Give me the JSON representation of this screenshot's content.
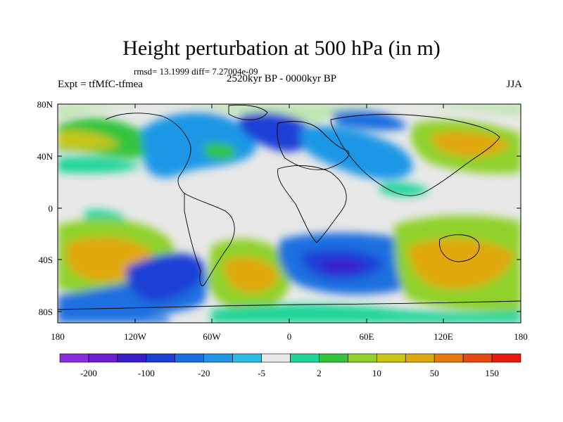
{
  "title": "Height perturbation at 500 hPa (in m)",
  "stats": "rmsd= 13.1999 diff= 7.27004e-09",
  "left_label": "Expt = tfMfC-tfmea",
  "center_label": "2520kyr BP - 0000kyr BP",
  "right_label": "JJA",
  "lat_ticks": [
    "80N",
    "40N",
    "0",
    "40S",
    "80S"
  ],
  "lon_ticks": [
    "180",
    "120W",
    "60W",
    "0",
    "60E",
    "120E",
    "180"
  ],
  "colorbar": {
    "colors": [
      "#8a2be2",
      "#6a1fd1",
      "#3b1bcb",
      "#1c3fd6",
      "#1a6fe0",
      "#1f97e6",
      "#2bbde8",
      "#e8e8e8",
      "#1ed59a",
      "#33c43a",
      "#8fd12a",
      "#c9c515",
      "#e0a810",
      "#e37a10",
      "#e74a10",
      "#e81a10"
    ],
    "labels": [
      "-200",
      "-100",
      "-20",
      "-5",
      "2",
      "10",
      "50",
      "150"
    ]
  }
}
